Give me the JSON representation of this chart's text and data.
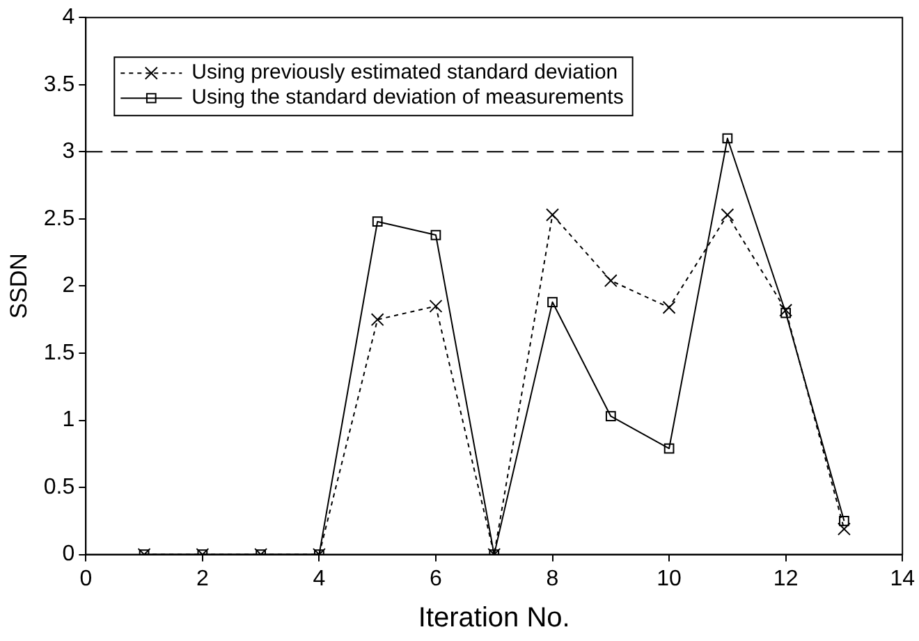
{
  "chart_data": {
    "type": "line",
    "xlabel": "Iteration No.",
    "ylabel": "SSDN",
    "x": [
      1,
      2,
      3,
      4,
      5,
      6,
      7,
      8,
      9,
      10,
      11,
      12,
      13
    ],
    "series": [
      {
        "name": "Using previously estimated standard deviation",
        "color": "#000000",
        "marker": "cross",
        "line_style": "dotted",
        "values": [
          0,
          0,
          0,
          0,
          1.75,
          1.85,
          0,
          2.53,
          2.04,
          1.84,
          2.53,
          1.82,
          0.19
        ]
      },
      {
        "name": "Using the standard deviation of measurements",
        "color": "#000000",
        "marker": "square",
        "line_style": "solid",
        "values": [
          0,
          0,
          0,
          0,
          2.48,
          2.38,
          0,
          1.88,
          1.03,
          0.79,
          3.1,
          1.8,
          0.25
        ]
      }
    ],
    "xlim": [
      0,
      14
    ],
    "xticks": [
      0,
      2,
      4,
      6,
      8,
      10,
      12,
      14
    ],
    "ylim": [
      0,
      4
    ],
    "yticks": [
      0,
      0.5,
      1,
      1.5,
      2,
      2.5,
      3,
      3.5,
      4
    ],
    "ref_lines": [
      {
        "axis": "y",
        "value": 3,
        "line_style": "dashed",
        "color": "#000000"
      }
    ],
    "grid": false,
    "legend": "top left"
  }
}
